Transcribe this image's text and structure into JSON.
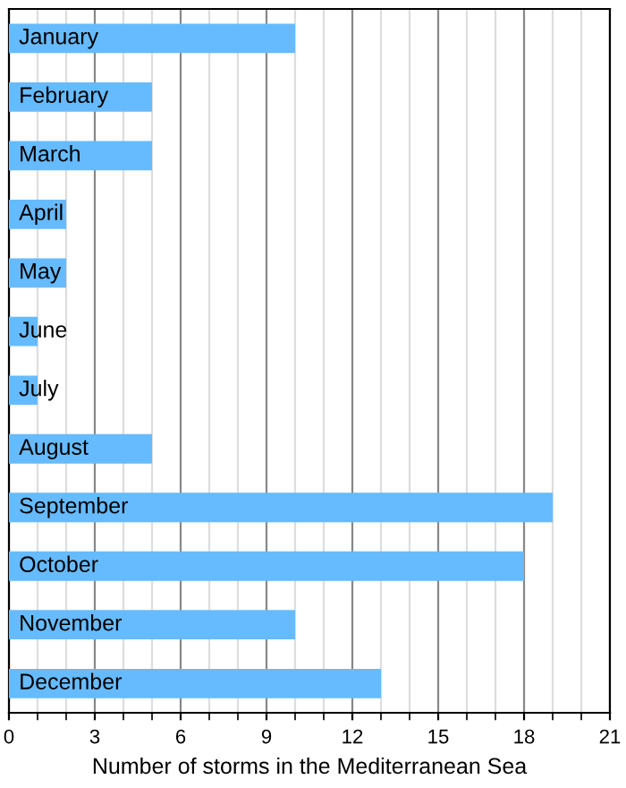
{
  "chart_data": {
    "type": "bar",
    "orientation": "horizontal",
    "xlabel": "Number of storms in the Mediterranean Sea",
    "categories": [
      "January",
      "February",
      "March",
      "April",
      "May",
      "June",
      "July",
      "August",
      "September",
      "October",
      "November",
      "December"
    ],
    "values": [
      10,
      5,
      5,
      2,
      2,
      1,
      1,
      5,
      19,
      18,
      10,
      13
    ],
    "color": "#66bbff",
    "xlim": [
      0,
      21
    ],
    "xticks": [
      0,
      3,
      6,
      9,
      12,
      15,
      18,
      21
    ],
    "grid": "x"
  }
}
